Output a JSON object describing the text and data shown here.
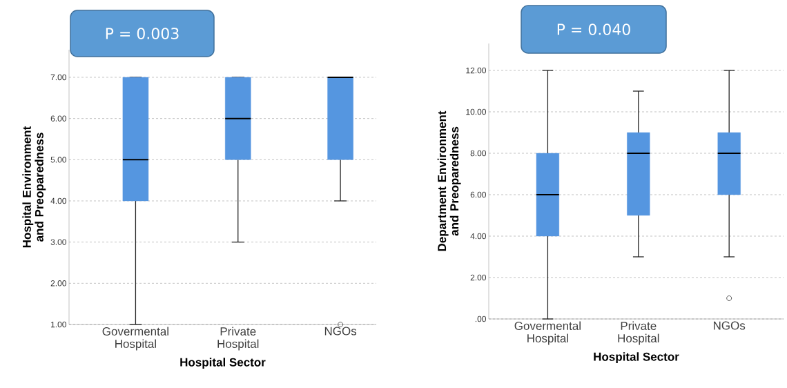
{
  "chart_data": [
    {
      "type": "box",
      "xlabel": "Hospital Sector",
      "ylabel": "Hospital Environment and Preoparedness",
      "annotations": [
        "P = 0.003"
      ],
      "categories": [
        "Govermental Hospital",
        "Private Hospital",
        "NGOs"
      ],
      "ylim": [
        1,
        7.67
      ],
      "yticks": [
        {
          "value": 1,
          "label": "1.00"
        },
        {
          "value": 2,
          "label": "2.00"
        },
        {
          "value": 3,
          "label": "3.00"
        },
        {
          "value": 4,
          "label": "4.00"
        },
        {
          "value": 5,
          "label": "5.00"
        },
        {
          "value": 6,
          "label": "6.00"
        },
        {
          "value": 7,
          "label": "7.00"
        }
      ],
      "grid": "y",
      "series": [
        {
          "color": "#5596e0",
          "boxes": [
            {
              "low": 1,
              "q1": 4,
              "median": 5,
              "q3": 7,
              "high": 7
            },
            {
              "low": 3,
              "q1": 5,
              "median": 6,
              "q3": 7,
              "high": 7
            },
            {
              "low": 4,
              "q1": 5,
              "median": 7,
              "q3": 7,
              "high": 7,
              "outliers": [
                1
              ]
            }
          ]
        }
      ]
    },
    {
      "type": "box",
      "xlabel": "Hospital Sector",
      "ylabel": "Department Environment and Preoparedness",
      "annotations": [
        "P = 0.040"
      ],
      "categories": [
        "Govermental Hospital",
        "Private Hospital",
        "NGOs"
      ],
      "ylim": [
        0,
        13.3
      ],
      "yticks": [
        {
          "value": 0,
          "label": ".00"
        },
        {
          "value": 2,
          "label": "2.00"
        },
        {
          "value": 4,
          "label": "4.00"
        },
        {
          "value": 6,
          "label": "6.00"
        },
        {
          "value": 8,
          "label": "8.00"
        },
        {
          "value": 10,
          "label": "10.00"
        },
        {
          "value": 12,
          "label": "12.00"
        }
      ],
      "grid": "y",
      "series": [
        {
          "color": "#5596e0",
          "boxes": [
            {
              "low": 0,
              "q1": 4,
              "median": 6,
              "q3": 8,
              "high": 12
            },
            {
              "low": 3,
              "q1": 5,
              "median": 8,
              "q3": 9,
              "high": 11
            },
            {
              "low": 3,
              "q1": 6,
              "median": 8,
              "q3": 9,
              "high": 12,
              "outliers": [
                1
              ]
            }
          ]
        }
      ]
    }
  ]
}
